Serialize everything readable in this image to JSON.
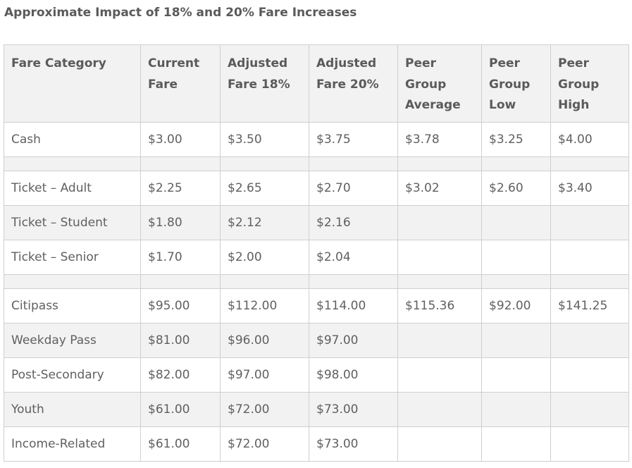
{
  "title": "Approximate Impact of 18% and 20% Fare Increases",
  "table": {
    "headers": [
      "Fare Category",
      "Current Fare",
      "Adjusted Fare 18%",
      "Adjusted Fare 20%",
      "Peer Group Average",
      "Peer Group Low",
      "Peer Group High"
    ],
    "rows": [
      {
        "type": "data",
        "shade": false,
        "cells": [
          "Cash",
          "$3.00",
          "$3.50",
          "$3.75",
          "$3.78",
          "$3.25",
          "$4.00"
        ]
      },
      {
        "type": "spacer",
        "cells": [
          "",
          "",
          "",
          "",
          "",
          "",
          ""
        ]
      },
      {
        "type": "data",
        "shade": false,
        "cells": [
          "Ticket – Adult",
          "$2.25",
          "$2.65",
          "$2.70",
          "$3.02",
          "$2.60",
          "$3.40"
        ]
      },
      {
        "type": "data",
        "shade": true,
        "cells": [
          "Ticket – Student",
          "$1.80",
          "$2.12",
          "$2.16",
          "",
          "",
          ""
        ]
      },
      {
        "type": "data",
        "shade": false,
        "cells": [
          "Ticket – Senior",
          "$1.70",
          "$2.00",
          "$2.04",
          "",
          "",
          ""
        ]
      },
      {
        "type": "spacer",
        "cells": [
          "",
          "",
          "",
          "",
          "",
          "",
          ""
        ]
      },
      {
        "type": "data",
        "shade": false,
        "cells": [
          "Citipass",
          "$95.00",
          "$112.00",
          "$114.00",
          "$115.36",
          "$92.00",
          "$141.25"
        ]
      },
      {
        "type": "data",
        "shade": true,
        "cells": [
          "Weekday Pass",
          "$81.00",
          "$96.00",
          "$97.00",
          "",
          "",
          ""
        ]
      },
      {
        "type": "data",
        "shade": false,
        "cells": [
          "Post-Secondary",
          "$82.00",
          "$97.00",
          "$98.00",
          "",
          "",
          ""
        ]
      },
      {
        "type": "data",
        "shade": true,
        "cells": [
          "Youth",
          "$61.00",
          "$72.00",
          "$73.00",
          "",
          "",
          ""
        ]
      },
      {
        "type": "data",
        "shade": false,
        "cells": [
          "Income-Related",
          "$61.00",
          "$72.00",
          "$73.00",
          "",
          "",
          ""
        ]
      }
    ]
  },
  "colors": {
    "header_bg": "#f2f2f2",
    "shade_bg": "#f2f2f2",
    "border": "#cfcfcf",
    "text": "#606060"
  }
}
